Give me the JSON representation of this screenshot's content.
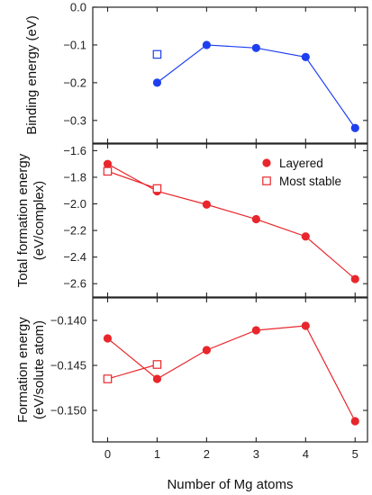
{
  "chart_data": {
    "type": "line",
    "xlabel": "Number of Mg atoms",
    "xlim": [
      -0.3,
      5.25
    ],
    "xticks": [
      0,
      1,
      2,
      3,
      4,
      5
    ],
    "legend": {
      "placement": "top-right",
      "panel": "middle",
      "entries": [
        {
          "name": "Layered",
          "marker": "filled-circle"
        },
        {
          "name": "Most stable",
          "marker": "open-square"
        }
      ]
    },
    "panels": [
      {
        "id": "binding",
        "ylabel": [
          "Binding energy (eV)"
        ],
        "ylim": [
          -0.36,
          0.0
        ],
        "yticks": [
          0.0,
          -0.1,
          -0.2,
          -0.3
        ],
        "ytick_labels": [
          "0.0",
          "-0.1",
          "-0.2",
          "-0.3"
        ],
        "color": "#1e3ff0",
        "series": [
          {
            "name": "Layered",
            "marker": "filled-circle",
            "line": true,
            "x": [
              1,
              2,
              3,
              4,
              5
            ],
            "y": [
              -0.2,
              -0.1,
              -0.108,
              -0.132,
              -0.32
            ]
          },
          {
            "name": "Most stable",
            "marker": "open-square",
            "line": false,
            "x": [
              1
            ],
            "y": [
              -0.125
            ]
          }
        ]
      },
      {
        "id": "total-formation",
        "ylabel": [
          "Total formation energy",
          "(eV/complex)"
        ],
        "ylim": [
          -2.7,
          -1.55
        ],
        "yticks": [
          -1.6,
          -1.8,
          -2.0,
          -2.2,
          -2.4,
          -2.6
        ],
        "ytick_labels": [
          "-1.6",
          "-1.8",
          "-2.0",
          "-2.2",
          "-2.4",
          "-2.6"
        ],
        "color": "#e8262b",
        "series": [
          {
            "name": "Layered",
            "marker": "filled-circle",
            "line": true,
            "x": [
              0,
              1,
              2,
              3,
              4,
              5
            ],
            "y": [
              -1.7,
              -1.905,
              -2.005,
              -2.115,
              -2.245,
              -2.565
            ]
          },
          {
            "name": "Most stable",
            "marker": "open-square",
            "line": true,
            "x": [
              0,
              1
            ],
            "y": [
              -1.755,
              -1.885
            ]
          }
        ]
      },
      {
        "id": "formation",
        "ylabel": [
          "Formation energy",
          "(eV/solute atom)"
        ],
        "ylim": [
          -0.1535,
          -0.1375
        ],
        "yticks": [
          -0.14,
          -0.145,
          -0.15
        ],
        "ytick_labels": [
          "-0.140",
          "-0.145",
          "-0.150"
        ],
        "color": "#e8262b",
        "series": [
          {
            "name": "Layered",
            "marker": "filled-circle",
            "line": true,
            "x": [
              0,
              1,
              2,
              3,
              4,
              5
            ],
            "y": [
              -0.142,
              -0.1465,
              -0.1433,
              -0.1411,
              -0.1406,
              -0.1512
            ]
          },
          {
            "name": "Most stable",
            "marker": "open-square",
            "line": true,
            "x": [
              0,
              1
            ],
            "y": [
              -0.1465,
              -0.1449
            ]
          }
        ]
      }
    ]
  }
}
